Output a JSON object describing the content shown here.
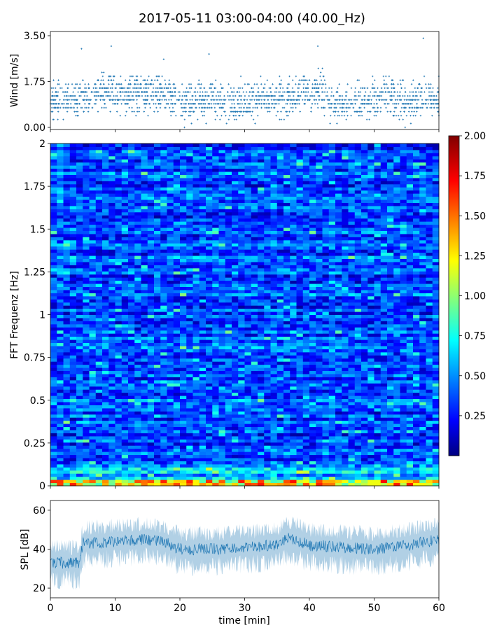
{
  "figure_title": "2017-05-11 03:00-04:00 (40.00_Hz)",
  "chart_data": [
    {
      "type": "scatter",
      "name": "wind",
      "ylabel": "Wind [m/s]",
      "xlim": [
        0,
        60
      ],
      "ylim": [
        0,
        3.5
      ],
      "yticks": [
        "0.00",
        "1.75",
        "3.50"
      ],
      "ytick_values": [
        0,
        1.75,
        3.5
      ],
      "marker_color": "#1f77b4",
      "level_profile": [
        [
          0,
          1.0
        ],
        [
          3,
          1.1
        ],
        [
          5,
          1.15
        ],
        [
          8,
          1.3
        ],
        [
          10,
          1.35
        ],
        [
          12,
          1.3
        ],
        [
          15,
          1.3
        ],
        [
          18,
          1.25
        ],
        [
          20,
          1.0
        ],
        [
          25,
          1.0
        ],
        [
          30,
          1.0
        ],
        [
          33,
          1.15
        ],
        [
          35,
          1.0
        ],
        [
          38,
          1.25
        ],
        [
          40,
          1.45
        ],
        [
          42,
          1.45
        ],
        [
          43,
          1.0
        ],
        [
          45,
          0.8
        ],
        [
          50,
          1.05
        ],
        [
          52,
          1.3
        ],
        [
          55,
          0.9
        ],
        [
          58,
          1.25
        ],
        [
          60,
          1.05
        ]
      ],
      "peaks": [
        [
          4.8,
          3.0
        ],
        [
          9.4,
          3.1
        ],
        [
          17.5,
          2.6
        ],
        [
          24.5,
          2.8
        ],
        [
          41.3,
          3.1
        ],
        [
          57.6,
          3.4
        ]
      ]
    },
    {
      "type": "heatmap",
      "name": "spectrogram",
      "ylabel": "FFT Frequenz [Hz]",
      "xlim": [
        0,
        60
      ],
      "ylim": [
        0,
        2
      ],
      "yticks": [
        "0",
        "0.25",
        "0.5",
        "0.75",
        "1",
        "1.25",
        "1.5",
        "1.75",
        "2"
      ],
      "ytick_values": [
        0,
        0.25,
        0.5,
        0.75,
        1,
        1.25,
        1.5,
        1.75,
        2
      ],
      "colormap": "jet",
      "color_range": [
        0,
        2
      ],
      "typical_level": 0.4,
      "low_frequency_level": 1.2,
      "colorbar_ticks": [
        "0.25",
        "0.50",
        "0.75",
        "1.00",
        "1.25",
        "1.50",
        "1.75",
        "2.00"
      ],
      "colorbar_tick_values": [
        0.25,
        0.5,
        0.75,
        1.0,
        1.25,
        1.5,
        1.75,
        2.0
      ]
    },
    {
      "type": "line",
      "name": "spl",
      "ylabel": "SPL [dB]",
      "xlabel": "time [min]",
      "xlim": [
        0,
        60
      ],
      "ylim": [
        15,
        65
      ],
      "yticks": [
        "20",
        "40",
        "60"
      ],
      "ytick_values": [
        20,
        40,
        60
      ],
      "xticks": [
        "0",
        "10",
        "20",
        "30",
        "40",
        "50",
        "60"
      ],
      "xtick_values": [
        0,
        10,
        20,
        30,
        40,
        50,
        60
      ],
      "line_color": "#1f77b4",
      "level_profile": [
        [
          0,
          33
        ],
        [
          4.5,
          33
        ],
        [
          5,
          43
        ],
        [
          10,
          44
        ],
        [
          15,
          45
        ],
        [
          18,
          43
        ],
        [
          20,
          40
        ],
        [
          25,
          40
        ],
        [
          30,
          41
        ],
        [
          35,
          42
        ],
        [
          37,
          46
        ],
        [
          40,
          42
        ],
        [
          45,
          41
        ],
        [
          50,
          40
        ],
        [
          55,
          42
        ],
        [
          60,
          45
        ]
      ]
    }
  ]
}
